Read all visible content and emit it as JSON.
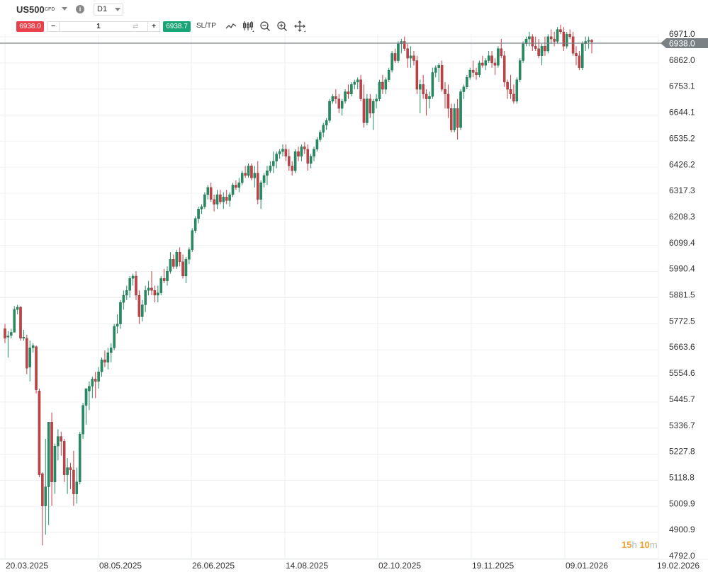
{
  "header": {
    "symbol": "US500",
    "instrument_type": "CFD",
    "timeframe": "D1",
    "sell_price": "6938.0",
    "quantity": "1",
    "buy_price": "6938.7",
    "sltp_label": "SL/TP",
    "minus_label": "−",
    "plus_label": "+",
    "info_label": "i",
    "tools": [
      "line-chart-icon",
      "candlestick-icon",
      "zoom-out-icon",
      "zoom-in-icon",
      "move-icon"
    ]
  },
  "colors": {
    "up": "#1f8f63",
    "down": "#d13a42",
    "sell": "#e8414a",
    "buy": "#1aa577",
    "price_line": "#7a8084",
    "grid": "#eef0f2",
    "timer_number": "#f0a030",
    "timer_unit": "#b8b8b8"
  },
  "timer": {
    "hours": "15",
    "hours_unit": "h",
    "minutes": "10",
    "minutes_unit": "m"
  },
  "chart_data": {
    "type": "candlestick",
    "title": "US500 CFD D1",
    "xlabel": "",
    "ylabel": "",
    "ylim": [
      4792.0,
      6971.0
    ],
    "grid": true,
    "current_price": 6938.0,
    "y_ticks": [
      "6971.0",
      "6862.0",
      "6753.1",
      "6644.1",
      "6535.2",
      "6426.2",
      "6317.3",
      "6208.3",
      "6099.4",
      "5990.4",
      "5881.5",
      "5772.5",
      "5663.6",
      "5554.6",
      "5445.7",
      "5336.7",
      "5227.8",
      "5118.8",
      "5009.9",
      "4900.9",
      "4792.0"
    ],
    "x_ticks": [
      "20.03.2025",
      "08.05.2025",
      "26.06.2025",
      "14.08.2025",
      "02.10.2025",
      "19.11.2025",
      "09.01.2026",
      "19.02.2026"
    ],
    "candles_ohlc": [
      [
        5740,
        5760,
        5680,
        5700
      ],
      [
        5705,
        5730,
        5620,
        5710
      ],
      [
        5712,
        5740,
        5700,
        5725
      ],
      [
        5725,
        5835,
        5725,
        5820
      ],
      [
        5820,
        5840,
        5800,
        5830
      ],
      [
        5830,
        5835,
        5690,
        5700
      ],
      [
        5700,
        5735,
        5690,
        5705
      ],
      [
        5700,
        5715,
        5550,
        5575
      ],
      [
        5580,
        5690,
        5520,
        5660
      ],
      [
        5660,
        5680,
        5640,
        5670
      ],
      [
        5665,
        5670,
        5470,
        5485
      ],
      [
        5480,
        5490,
        5120,
        5130
      ],
      [
        5135,
        5140,
        4835,
        5000
      ],
      [
        5000,
        5280,
        4880,
        5080
      ],
      [
        5080,
        5350,
        4920,
        5350
      ],
      [
        5350,
        5390,
        5000,
        5100
      ],
      [
        5100,
        5260,
        5050,
        5250
      ],
      [
        5250,
        5320,
        5190,
        5290
      ],
      [
        5290,
        5310,
        5210,
        5270
      ],
      [
        5270,
        5280,
        5100,
        5130
      ],
      [
        5130,
        5200,
        5050,
        5160
      ],
      [
        5160,
        5180,
        5070,
        5150
      ],
      [
        5150,
        5230,
        5000,
        5050
      ],
      [
        5050,
        5160,
        5010,
        5100
      ],
      [
        5100,
        5310,
        5090,
        5300
      ],
      [
        5300,
        5430,
        5280,
        5420
      ],
      [
        5420,
        5480,
        5340,
        5490
      ],
      [
        5480,
        5520,
        5400,
        5500
      ],
      [
        5500,
        5540,
        5450,
        5530
      ],
      [
        5530,
        5560,
        5450,
        5520
      ],
      [
        5520,
        5580,
        5490,
        5560
      ],
      [
        5560,
        5620,
        5540,
        5610
      ],
      [
        5610,
        5650,
        5580,
        5600
      ],
      [
        5600,
        5660,
        5570,
        5640
      ],
      [
        5640,
        5680,
        5600,
        5660
      ],
      [
        5660,
        5760,
        5650,
        5750
      ],
      [
        5750,
        5800,
        5720,
        5760
      ],
      [
        5760,
        5860,
        5740,
        5850
      ],
      [
        5850,
        5900,
        5820,
        5880
      ],
      [
        5880,
        5920,
        5860,
        5900
      ],
      [
        5900,
        5960,
        5870,
        5950
      ],
      [
        5950,
        5970,
        5920,
        5960
      ],
      [
        5960,
        5980,
        5860,
        5880
      ],
      [
        5880,
        5900,
        5760,
        5790
      ],
      [
        5790,
        5860,
        5770,
        5840
      ],
      [
        5840,
        5920,
        5810,
        5900
      ],
      [
        5900,
        5940,
        5880,
        5910
      ],
      [
        5910,
        5980,
        5880,
        5900
      ],
      [
        5900,
        5920,
        5850,
        5880
      ],
      [
        5880,
        5920,
        5850,
        5890
      ],
      [
        5890,
        5960,
        5880,
        5950
      ],
      [
        5950,
        5990,
        5930,
        5940
      ],
      [
        5940,
        6000,
        5920,
        5980
      ],
      [
        5980,
        6060,
        5970,
        6030
      ],
      [
        6030,
        6050,
        5990,
        6000
      ],
      [
        6000,
        6070,
        5990,
        6060
      ],
      [
        6060,
        6080,
        6000,
        6020
      ],
      [
        6020,
        6050,
        5950,
        5960
      ],
      [
        5960,
        6040,
        5930,
        6030
      ],
      [
        6030,
        6080,
        6010,
        6070
      ],
      [
        6070,
        6160,
        6060,
        6150
      ],
      [
        6150,
        6210,
        6140,
        6200
      ],
      [
        6200,
        6250,
        6180,
        6240
      ],
      [
        6240,
        6260,
        6220,
        6250
      ],
      [
        6250,
        6310,
        6240,
        6300
      ],
      [
        6300,
        6340,
        6280,
        6330
      ],
      [
        6330,
        6350,
        6270,
        6280
      ],
      [
        6280,
        6300,
        6230,
        6260
      ],
      [
        6260,
        6320,
        6240,
        6300
      ],
      [
        6300,
        6320,
        6260,
        6270
      ],
      [
        6270,
        6310,
        6240,
        6290
      ],
      [
        6290,
        6320,
        6260,
        6275
      ],
      [
        6275,
        6310,
        6250,
        6300
      ],
      [
        6300,
        6350,
        6290,
        6340
      ],
      [
        6340,
        6360,
        6320,
        6330
      ],
      [
        6330,
        6370,
        6310,
        6350
      ],
      [
        6350,
        6400,
        6340,
        6390
      ],
      [
        6390,
        6420,
        6370,
        6380
      ],
      [
        6380,
        6430,
        6370,
        6420
      ],
      [
        6420,
        6430,
        6360,
        6370
      ],
      [
        6370,
        6420,
        6330,
        6390
      ],
      [
        6390,
        6440,
        6260,
        6280
      ],
      [
        6280,
        6360,
        6240,
        6350
      ],
      [
        6350,
        6390,
        6330,
        6380
      ],
      [
        6380,
        6420,
        6340,
        6400
      ],
      [
        6400,
        6440,
        6390,
        6420
      ],
      [
        6420,
        6480,
        6390,
        6440
      ],
      [
        6440,
        6480,
        6410,
        6470
      ],
      [
        6470,
        6490,
        6450,
        6480
      ],
      [
        6480,
        6510,
        6460,
        6490
      ],
      [
        6490,
        6510,
        6440,
        6460
      ],
      [
        6460,
        6490,
        6400,
        6420
      ],
      [
        6420,
        6440,
        6380,
        6400
      ],
      [
        6400,
        6490,
        6390,
        6480
      ],
      [
        6480,
        6500,
        6440,
        6460
      ],
      [
        6460,
        6510,
        6440,
        6500
      ],
      [
        6500,
        6520,
        6470,
        6490
      ],
      [
        6490,
        6510,
        6400,
        6430
      ],
      [
        6430,
        6470,
        6410,
        6460
      ],
      [
        6460,
        6500,
        6440,
        6490
      ],
      [
        6490,
        6540,
        6480,
        6530
      ],
      [
        6530,
        6570,
        6520,
        6560
      ],
      [
        6560,
        6600,
        6540,
        6590
      ],
      [
        6590,
        6620,
        6570,
        6610
      ],
      [
        6610,
        6700,
        6600,
        6690
      ],
      [
        6690,
        6720,
        6680,
        6710
      ],
      [
        6710,
        6740,
        6680,
        6700
      ],
      [
        6700,
        6720,
        6640,
        6660
      ],
      [
        6660,
        6700,
        6630,
        6690
      ],
      [
        6690,
        6740,
        6680,
        6730
      ],
      [
        6730,
        6760,
        6700,
        6720
      ],
      [
        6720,
        6770,
        6710,
        6760
      ],
      [
        6760,
        6780,
        6740,
        6770
      ],
      [
        6770,
        6790,
        6740,
        6780
      ],
      [
        6780,
        6800,
        6690,
        6700
      ],
      [
        6700,
        6760,
        6580,
        6600
      ],
      [
        6600,
        6720,
        6590,
        6700
      ],
      [
        6700,
        6720,
        6620,
        6640
      ],
      [
        6640,
        6700,
        6570,
        6690
      ],
      [
        6690,
        6720,
        6660,
        6700
      ],
      [
        6700,
        6780,
        6690,
        6770
      ],
      [
        6770,
        6800,
        6720,
        6740
      ],
      [
        6740,
        6790,
        6720,
        6780
      ],
      [
        6780,
        6830,
        6770,
        6820
      ],
      [
        6820,
        6900,
        6810,
        6890
      ],
      [
        6890,
        6910,
        6850,
        6860
      ],
      [
        6860,
        6940,
        6850,
        6930
      ],
      [
        6930,
        6950,
        6890,
        6940
      ],
      [
        6940,
        6960,
        6900,
        6910
      ],
      [
        6910,
        6930,
        6830,
        6870
      ],
      [
        6870,
        6920,
        6830,
        6880
      ],
      [
        6880,
        6900,
        6840,
        6860
      ],
      [
        6860,
        6880,
        6720,
        6740
      ],
      [
        6740,
        6780,
        6640,
        6760
      ],
      [
        6760,
        6800,
        6700,
        6720
      ],
      [
        6720,
        6740,
        6630,
        6700
      ],
      [
        6700,
        6730,
        6660,
        6710
      ],
      [
        6710,
        6830,
        6700,
        6810
      ],
      [
        6810,
        6840,
        6790,
        6830
      ],
      [
        6830,
        6850,
        6770,
        6840
      ],
      [
        6840,
        6860,
        6730,
        6740
      ],
      [
        6740,
        6770,
        6660,
        6720
      ],
      [
        6720,
        6760,
        6620,
        6660
      ],
      [
        6660,
        6680,
        6560,
        6570
      ],
      [
        6570,
        6680,
        6560,
        6660
      ],
      [
        6660,
        6700,
        6530,
        6580
      ],
      [
        6580,
        6740,
        6570,
        6730
      ],
      [
        6730,
        6760,
        6700,
        6750
      ],
      [
        6750,
        6800,
        6740,
        6790
      ],
      [
        6790,
        6830,
        6780,
        6820
      ],
      [
        6820,
        6860,
        6790,
        6810
      ],
      [
        6810,
        6830,
        6780,
        6800
      ],
      [
        6800,
        6860,
        6790,
        6850
      ],
      [
        6850,
        6880,
        6830,
        6840
      ],
      [
        6840,
        6870,
        6820,
        6860
      ],
      [
        6860,
        6900,
        6850,
        6880
      ],
      [
        6880,
        6900,
        6830,
        6850
      ],
      [
        6850,
        6870,
        6800,
        6840
      ],
      [
        6840,
        6920,
        6830,
        6910
      ],
      [
        6910,
        6950,
        6870,
        6880
      ],
      [
        6880,
        6900,
        6750,
        6770
      ],
      [
        6770,
        6780,
        6700,
        6740
      ],
      [
        6740,
        6800,
        6700,
        6720
      ],
      [
        6720,
        6760,
        6680,
        6690
      ],
      [
        6690,
        6790,
        6680,
        6780
      ],
      [
        6780,
        6870,
        6770,
        6860
      ],
      [
        6860,
        6940,
        6850,
        6930
      ],
      [
        6930,
        6960,
        6920,
        6950
      ],
      [
        6950,
        6980,
        6920,
        6960
      ],
      [
        6960,
        6970,
        6900,
        6920
      ],
      [
        6920,
        6960,
        6900,
        6910
      ],
      [
        6910,
        6950,
        6870,
        6880
      ],
      [
        6880,
        6930,
        6840,
        6920
      ],
      [
        6920,
        6960,
        6880,
        6900
      ],
      [
        6900,
        6970,
        6890,
        6960
      ],
      [
        6960,
        6990,
        6930,
        6950
      ],
      [
        6950,
        6980,
        6920,
        6940
      ],
      [
        6940,
        7000,
        6930,
        6990
      ],
      [
        6990,
        7010,
        6970,
        6980
      ],
      [
        6980,
        7000,
        6900,
        6920
      ],
      [
        6920,
        6980,
        6910,
        6970
      ],
      [
        6970,
        6990,
        6950,
        6960
      ],
      [
        6960,
        6980,
        6880,
        6890
      ],
      [
        6890,
        6920,
        6840,
        6880
      ],
      [
        6880,
        6900,
        6820,
        6830
      ],
      [
        6830,
        6940,
        6820,
        6930
      ],
      [
        6930,
        6960,
        6900,
        6940
      ],
      [
        6940,
        6960,
        6910,
        6945
      ],
      [
        6945,
        6950,
        6890,
        6938
      ]
    ]
  }
}
